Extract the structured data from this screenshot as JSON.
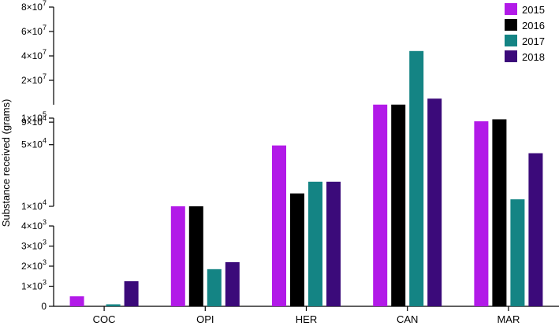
{
  "chart_data": {
    "type": "bar",
    "ylabel": "Substance received (grams)",
    "categories": [
      "COC",
      "OPI",
      "HER",
      "CAN",
      "MAR"
    ],
    "series": [
      {
        "name": "2015",
        "color": "#b21ae8",
        "values": [
          500,
          10000,
          49000,
          108000,
          92000
        ]
      },
      {
        "name": "2016",
        "color": "#000000",
        "values": [
          0,
          9000,
          14000,
          108000,
          97000
        ]
      },
      {
        "name": "2017",
        "color": "#148484",
        "values": [
          100,
          1850,
          19000,
          44000000,
          12000
        ]
      },
      {
        "name": "2018",
        "color": "#3b0a7a",
        "values": [
          1250,
          2200,
          19000,
          5000000,
          40000
        ]
      }
    ],
    "y_segments": [
      {
        "label": "linear",
        "range": [
          0,
          4000
        ],
        "ticks": [
          {
            "value": 0,
            "mant": "0",
            "exp": ""
          },
          {
            "value": 1000,
            "mant": "1×10",
            "exp": "3"
          },
          {
            "value": 2000,
            "mant": "2×10",
            "exp": "3"
          },
          {
            "value": 3000,
            "mant": "3×10",
            "exp": "3"
          },
          {
            "value": 4000,
            "mant": "4×10",
            "exp": "3"
          }
        ]
      },
      {
        "label": "log",
        "range": [
          10000,
          100000
        ],
        "ticks": [
          {
            "value": 10000,
            "mant": "1×10",
            "exp": "4"
          },
          {
            "value": 50000,
            "mant": "5×10",
            "exp": "4"
          },
          {
            "value": 90000,
            "mant": "9×10",
            "exp": "4"
          },
          {
            "value": 100000,
            "mant": "1×10",
            "exp": "5"
          }
        ]
      },
      {
        "label": "linear",
        "range": [
          0,
          80000000
        ],
        "ticks": [
          {
            "value": 20000000,
            "mant": "2×10",
            "exp": "7"
          },
          {
            "value": 40000000,
            "mant": "4×10",
            "exp": "7"
          },
          {
            "value": 60000000,
            "mant": "6×10",
            "exp": "7"
          },
          {
            "value": 80000000,
            "mant": "8×10",
            "exp": "7"
          }
        ]
      }
    ],
    "grid": false,
    "legend_position": "top-right"
  }
}
